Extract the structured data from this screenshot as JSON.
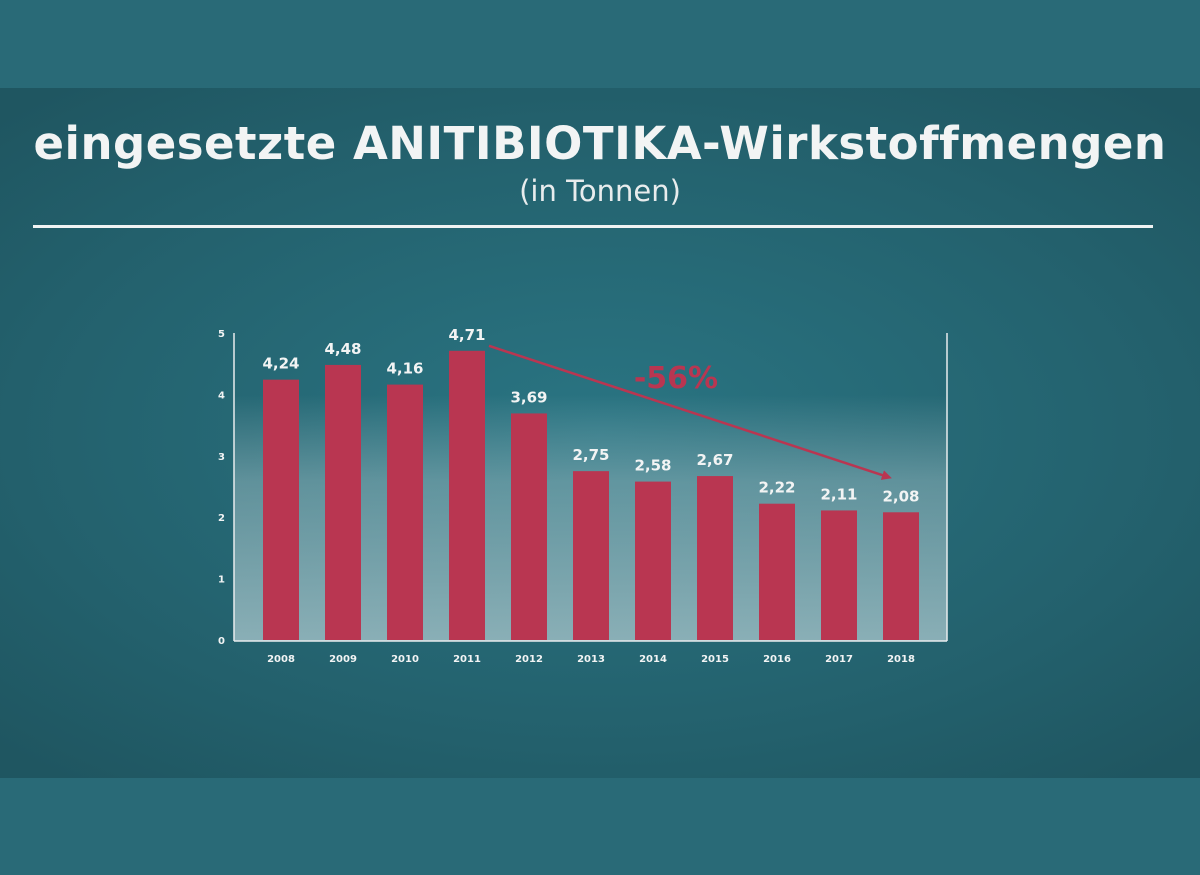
{
  "header": {
    "title": "eingesetzte ANITIBIOTIKA-Wirkstoffmengen",
    "subtitle": "(in Tonnen)"
  },
  "chart_data": {
    "type": "bar",
    "categories": [
      "2008",
      "2009",
      "2010",
      "2011",
      "2012",
      "2013",
      "2014",
      "2015",
      "2016",
      "2017",
      "2018"
    ],
    "values": [
      4.24,
      4.48,
      4.16,
      4.71,
      3.69,
      2.75,
      2.58,
      2.67,
      2.22,
      2.11,
      2.08
    ],
    "value_labels": [
      "4,24",
      "4,48",
      "4,16",
      "4,71",
      "3,69",
      "2,75",
      "2,58",
      "2,67",
      "2,22",
      "2,11",
      "2,08"
    ],
    "yticks": [
      "0",
      "1",
      "2",
      "3",
      "4",
      "5"
    ],
    "ylim": [
      0,
      5
    ],
    "xlabel": "",
    "ylabel": "",
    "grid": false,
    "annotation": {
      "text": "-56%",
      "from": "2011",
      "to": "2018"
    },
    "colors": {
      "bar": "#b93651",
      "annotation": "#b93651",
      "text": "#f2f4f4",
      "axis": "#e8eced"
    }
  }
}
